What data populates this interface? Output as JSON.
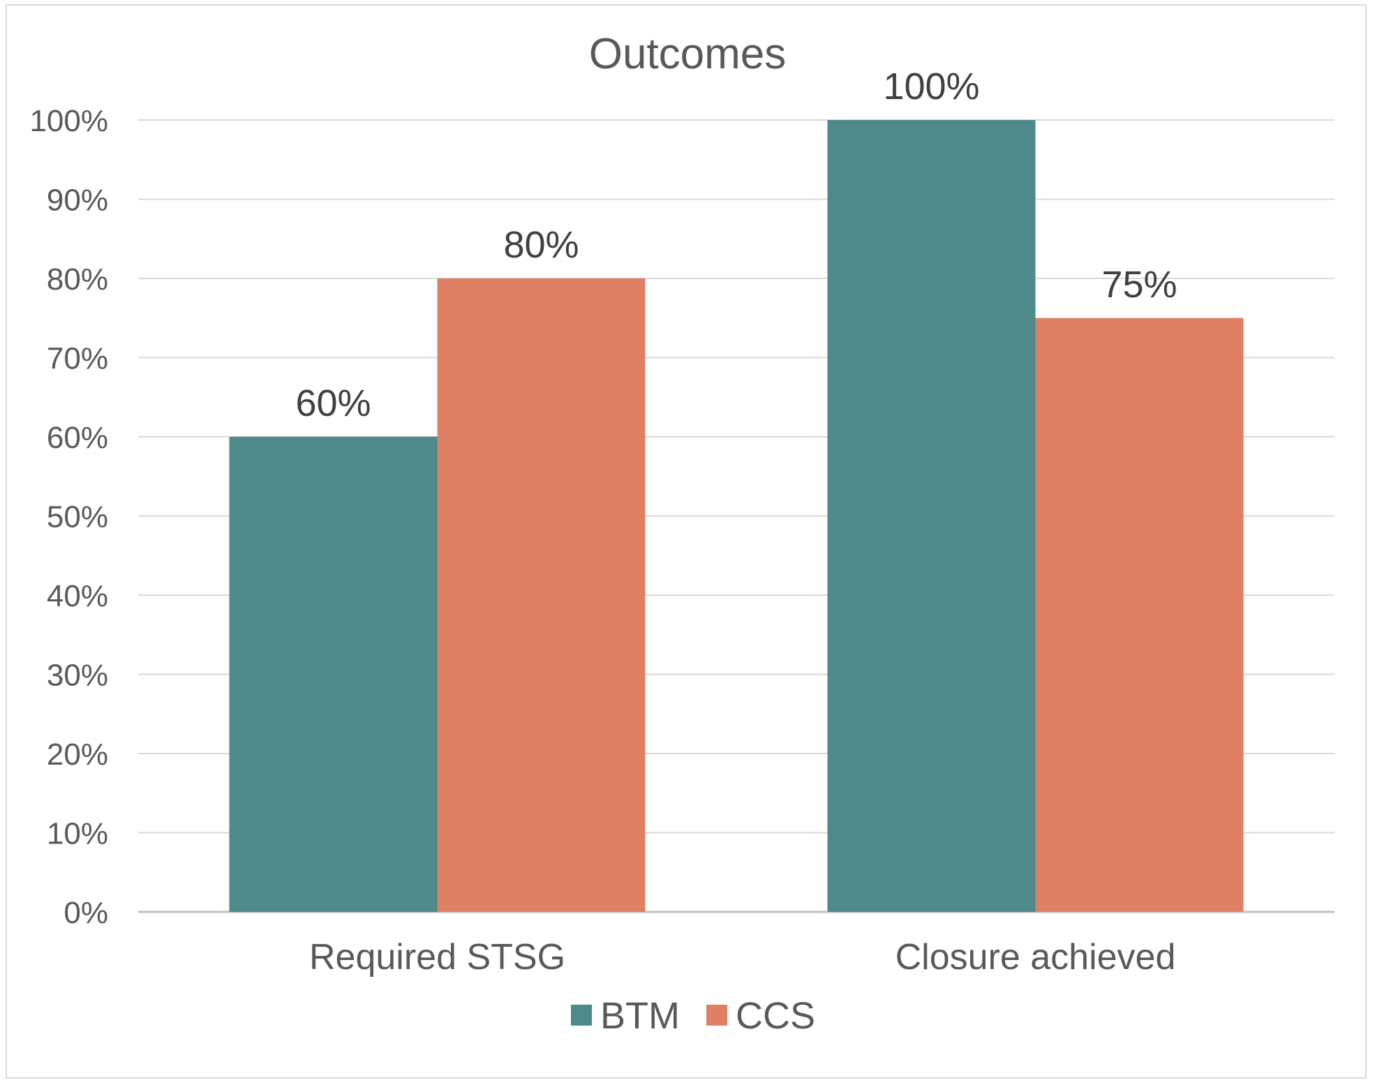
{
  "chart_data": {
    "type": "bar",
    "title": "Outcomes",
    "categories": [
      "Required STSG",
      "Closure achieved"
    ],
    "series": [
      {
        "name": "BTM",
        "values": [
          60,
          100
        ],
        "labels": [
          "60%",
          "100%"
        ],
        "color": "#4e8a89"
      },
      {
        "name": "CCS",
        "values": [
          80,
          75
        ],
        "labels": [
          "80%",
          "75%"
        ],
        "color": "#df8064"
      }
    ],
    "ylim": [
      0,
      100
    ],
    "yticks": [
      "0%",
      "10%",
      "20%",
      "30%",
      "40%",
      "50%",
      "60%",
      "70%",
      "80%",
      "90%",
      "100%"
    ],
    "xlabel": "",
    "ylabel": "",
    "grid": true,
    "legend": "bottom"
  }
}
